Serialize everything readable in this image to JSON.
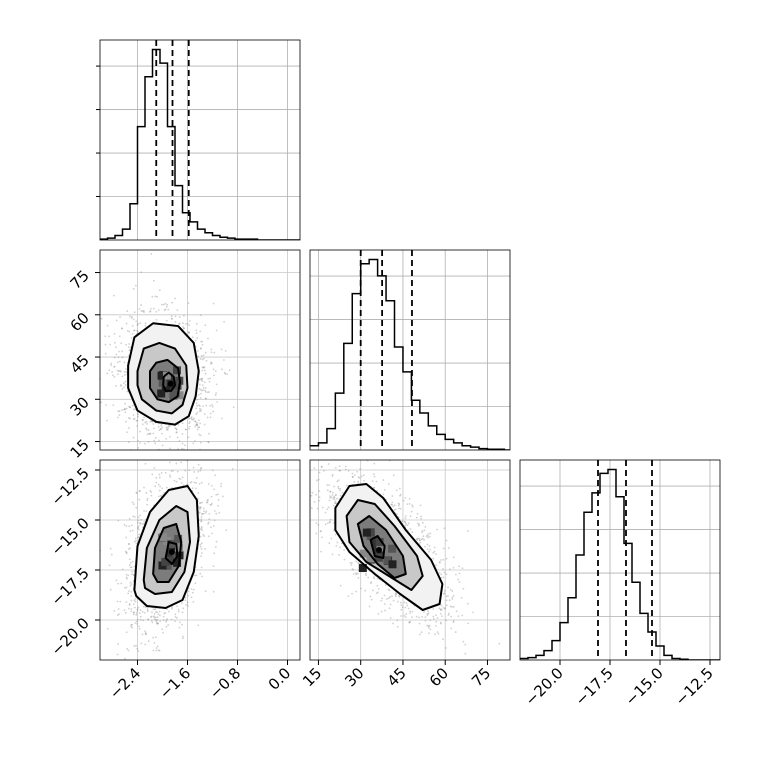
{
  "chart_data": {
    "type": "corner",
    "parameters": [
      {
        "range": [
          -3.0,
          0.2
        ],
        "ticks": [
          "−2.4",
          "−1.6",
          "−0.8",
          "0.0"
        ],
        "tick_values": [
          -2.4,
          -1.6,
          -0.8,
          0.0
        ],
        "quantiles": [
          -2.1,
          -1.84,
          -1.58
        ]
      },
      {
        "range": [
          12,
          83
        ],
        "ticks": [
          "15",
          "30",
          "45",
          "60",
          "75"
        ],
        "tick_values": [
          15,
          30,
          45,
          60,
          75
        ],
        "quantiles": [
          30.0,
          37.6,
          48.2
        ]
      },
      {
        "range": [
          -22.0,
          -12.0
        ],
        "ticks": [
          "−20.0",
          "−17.5",
          "−15.0",
          "−12.5"
        ],
        "tick_values": [
          -20.0,
          -17.5,
          -15.0,
          -12.5
        ],
        "quantiles": [
          -18.1,
          -16.7,
          -15.4
        ]
      }
    ],
    "histograms": [
      {
        "param": 0,
        "bin_start": -3.0,
        "bin_width": 0.12,
        "counts": [
          1,
          2,
          5,
          12,
          40,
          125,
          180,
          210,
          195,
          125,
          60,
          30,
          20,
          12,
          8,
          5,
          3,
          2,
          1,
          1,
          1,
          0,
          0,
          0,
          0,
          0,
          0
        ]
      },
      {
        "param": 1,
        "bin_start": 12,
        "bin_width": 3.0,
        "counts": [
          6,
          10,
          30,
          80,
          150,
          220,
          262,
          268,
          245,
          210,
          145,
          110,
          70,
          52,
          34,
          22,
          15,
          10,
          6,
          4,
          2,
          1,
          1,
          0
        ]
      },
      {
        "param": 2,
        "bin_start": -22.0,
        "bin_width": 0.4,
        "counts": [
          2,
          3,
          6,
          12,
          25,
          48,
          80,
          135,
          190,
          215,
          240,
          245,
          210,
          150,
          100,
          60,
          36,
          18,
          6,
          2,
          1,
          0,
          0,
          0,
          0
        ]
      }
    ],
    "panels_2d": [
      {
        "x_param": 0,
        "y_param": 1,
        "peak": [
          -1.87,
          35.5
        ],
        "contours": [
          {
            "level": "outer",
            "points": [
              [
                -2.55,
                42
              ],
              [
                -2.45,
                52
              ],
              [
                -2.15,
                57
              ],
              [
                -1.75,
                56
              ],
              [
                -1.5,
                50
              ],
              [
                -1.42,
                40
              ],
              [
                -1.47,
                31
              ],
              [
                -1.58,
                24
              ],
              [
                -1.8,
                21
              ],
              [
                -2.1,
                22
              ],
              [
                -2.4,
                26
              ],
              [
                -2.55,
                34
              ]
            ]
          },
          {
            "level": "middle",
            "points": [
              [
                -2.4,
                40
              ],
              [
                -2.3,
                48
              ],
              [
                -2.05,
                50
              ],
              [
                -1.8,
                48
              ],
              [
                -1.62,
                42
              ],
              [
                -1.6,
                34
              ],
              [
                -1.68,
                28
              ],
              [
                -1.85,
                25
              ],
              [
                -2.1,
                26
              ],
              [
                -2.33,
                30
              ],
              [
                -2.4,
                35
              ]
            ]
          },
          {
            "level": "inner",
            "points": [
              [
                -2.2,
                40
              ],
              [
                -2.1,
                43
              ],
              [
                -1.92,
                44
              ],
              [
                -1.75,
                41
              ],
              [
                -1.72,
                36
              ],
              [
                -1.76,
                31
              ],
              [
                -1.9,
                29
              ],
              [
                -2.08,
                30
              ],
              [
                -2.2,
                34
              ]
            ]
          },
          {
            "level": "core",
            "points": [
              [
                -1.98,
                38
              ],
              [
                -1.9,
                39.5
              ],
              [
                -1.82,
                38
              ],
              [
                -1.8,
                35
              ],
              [
                -1.86,
                33
              ],
              [
                -1.95,
                33
              ],
              [
                -1.99,
                35
              ]
            ]
          }
        ]
      },
      {
        "x_param": 0,
        "y_param": 2,
        "peak": [
          -1.85,
          -16.6
        ],
        "contours": [
          {
            "level": "outer",
            "points": [
              [
                -2.45,
                -18.5
              ],
              [
                -2.4,
                -16.3
              ],
              [
                -2.2,
                -14.6
              ],
              [
                -1.9,
                -13.5
              ],
              [
                -1.6,
                -13.3
              ],
              [
                -1.45,
                -14.0
              ],
              [
                -1.42,
                -15.8
              ],
              [
                -1.5,
                -17.6
              ],
              [
                -1.68,
                -19.0
              ],
              [
                -1.95,
                -19.4
              ],
              [
                -2.25,
                -19.3
              ],
              [
                -2.42,
                -18.8
              ]
            ]
          },
          {
            "level": "middle",
            "points": [
              [
                -2.3,
                -18.0
              ],
              [
                -2.25,
                -16.4
              ],
              [
                -2.05,
                -15.0
              ],
              [
                -1.78,
                -14.3
              ],
              [
                -1.6,
                -14.6
              ],
              [
                -1.56,
                -16.1
              ],
              [
                -1.65,
                -17.6
              ],
              [
                -1.85,
                -18.6
              ],
              [
                -2.12,
                -18.7
              ],
              [
                -2.28,
                -18.4
              ]
            ]
          },
          {
            "level": "inner",
            "points": [
              [
                -2.15,
                -17.7
              ],
              [
                -2.12,
                -16.4
              ],
              [
                -1.98,
                -15.4
              ],
              [
                -1.78,
                -15.2
              ],
              [
                -1.7,
                -16.1
              ],
              [
                -1.74,
                -17.3
              ],
              [
                -1.9,
                -18.1
              ],
              [
                -2.08,
                -18.1
              ]
            ]
          },
          {
            "level": "core",
            "points": [
              [
                -1.95,
                -16.9
              ],
              [
                -1.9,
                -16.1
              ],
              [
                -1.78,
                -16.2
              ],
              [
                -1.76,
                -16.8
              ],
              [
                -1.85,
                -17.2
              ]
            ]
          }
        ]
      },
      {
        "x_param": 1,
        "y_param": 2,
        "peak": [
          36.5,
          -16.5
        ],
        "contours": [
          {
            "level": "outer",
            "points": [
              [
                21,
                -14.4
              ],
              [
                26,
                -13.3
              ],
              [
                32,
                -13.2
              ],
              [
                38,
                -13.9
              ],
              [
                46,
                -15.5
              ],
              [
                55,
                -17.0
              ],
              [
                59,
                -18.2
              ],
              [
                58,
                -19.2
              ],
              [
                52,
                -19.5
              ],
              [
                44,
                -18.7
              ],
              [
                35,
                -17.7
              ],
              [
                26,
                -16.6
              ],
              [
                21,
                -15.5
              ]
            ]
          },
          {
            "level": "middle",
            "points": [
              [
                25,
                -14.8
              ],
              [
                29,
                -14.0
              ],
              [
                35,
                -14.2
              ],
              [
                42,
                -15.3
              ],
              [
                50,
                -16.8
              ],
              [
                52,
                -17.8
              ],
              [
                48,
                -18.5
              ],
              [
                40,
                -17.8
              ],
              [
                32,
                -17.1
              ],
              [
                26,
                -16.1
              ]
            ]
          },
          {
            "level": "inner",
            "points": [
              [
                29,
                -15.2
              ],
              [
                33,
                -14.8
              ],
              [
                39,
                -15.5
              ],
              [
                45,
                -16.8
              ],
              [
                46,
                -17.7
              ],
              [
                42,
                -17.9
              ],
              [
                36,
                -17.2
              ],
              [
                31,
                -16.3
              ]
            ]
          },
          {
            "level": "core",
            "points": [
              [
                33.5,
                -16.0
              ],
              [
                36,
                -15.8
              ],
              [
                38.5,
                -16.3
              ],
              [
                38,
                -16.9
              ],
              [
                35,
                -16.8
              ]
            ]
          }
        ]
      }
    ]
  }
}
